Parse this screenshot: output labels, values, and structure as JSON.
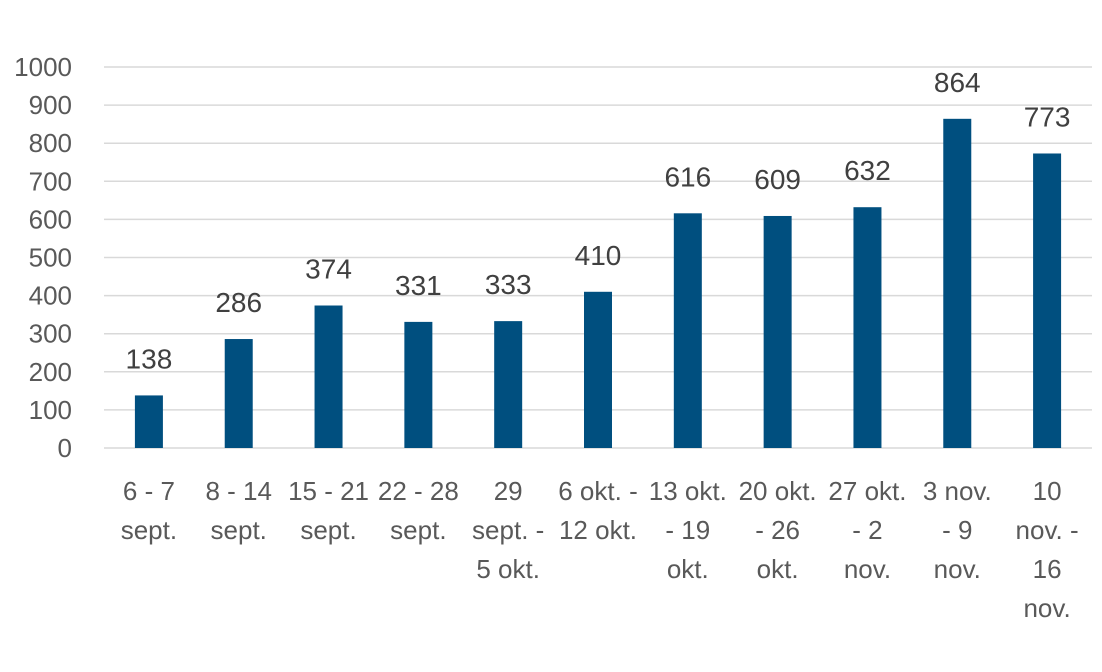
{
  "chart_data": {
    "type": "bar",
    "categories": [
      [
        "6 - 7",
        "sept."
      ],
      [
        "8 - 14",
        "sept."
      ],
      [
        "15 - 21",
        "sept."
      ],
      [
        "22 - 28",
        "sept."
      ],
      [
        "29",
        "sept. -",
        "5 okt."
      ],
      [
        "6 okt. -",
        "12 okt."
      ],
      [
        "13 okt.",
        "- 19",
        "okt."
      ],
      [
        "20 okt.",
        "- 26",
        "okt."
      ],
      [
        "27 okt.",
        "- 2",
        "nov."
      ],
      [
        "3 nov.",
        "- 9",
        "nov."
      ],
      [
        "10",
        "nov. -",
        "16",
        "nov."
      ]
    ],
    "values": [
      138,
      286,
      374,
      331,
      333,
      410,
      616,
      609,
      632,
      864,
      773
    ],
    "ylim": [
      0,
      1000
    ],
    "yticks": [
      0,
      100,
      200,
      300,
      400,
      500,
      600,
      700,
      800,
      900,
      1000
    ],
    "grid": true,
    "bar_color": "#004f7f",
    "title": "",
    "xlabel": "",
    "ylabel": ""
  }
}
